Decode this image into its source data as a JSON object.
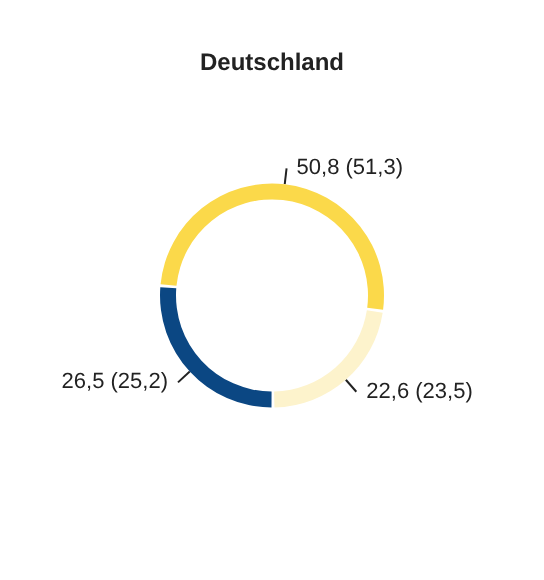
{
  "chart_data": {
    "type": "donut",
    "title": "Deutschland",
    "categories": [
      null,
      null,
      null
    ],
    "values": [
      50.8,
      22.6,
      26.5
    ],
    "colors": [
      "#fbd94a",
      "#fdf3cc",
      "#0b4783"
    ],
    "value_labels": [
      "50,8 (51,3)",
      "22,6 (23,5)",
      "26,5 (25,2)"
    ]
  }
}
